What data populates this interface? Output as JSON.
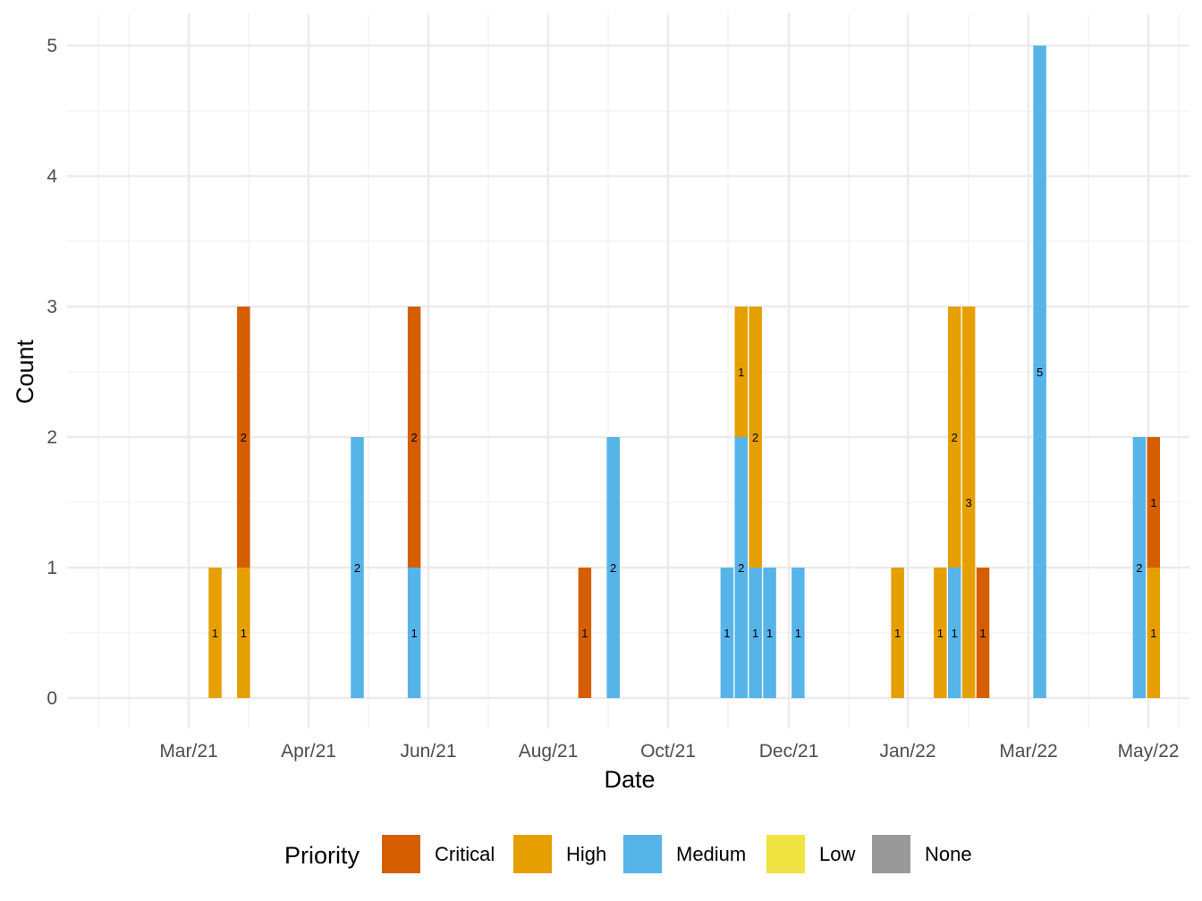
{
  "chart_data": {
    "type": "bar",
    "stacked": true,
    "xlabel": "Date",
    "ylabel": "Count",
    "ylim": [
      0,
      5
    ],
    "y_ticks": [
      0,
      1,
      2,
      3,
      4,
      5
    ],
    "x_ticks": [
      "Mar/21",
      "Apr/21",
      "Jun/21",
      "Aug/21",
      "Oct/21",
      "Dec/21",
      "Jan/22",
      "Mar/22",
      "May/22"
    ],
    "grid": true,
    "legend": {
      "title": "Priority",
      "position": "bottom",
      "entries": [
        {
          "name": "Critical",
          "color": "#D55E00"
        },
        {
          "name": "High",
          "color": "#E69F00"
        },
        {
          "name": "Medium",
          "color": "#56B4E9"
        },
        {
          "name": "Low",
          "color": "#F0E442"
        },
        {
          "name": "None",
          "color": "#999999"
        }
      ]
    },
    "bars": [
      {
        "week": "2021-01-25",
        "segments": [
          {
            "priority": "High",
            "value": 1
          }
        ]
      },
      {
        "week": "2021-02-08",
        "segments": [
          {
            "priority": "High",
            "value": 1
          },
          {
            "priority": "Critical",
            "value": 2
          }
        ]
      },
      {
        "week": "2021-04-05",
        "segments": [
          {
            "priority": "Medium",
            "value": 2
          }
        ]
      },
      {
        "week": "2021-05-03",
        "segments": [
          {
            "priority": "Medium",
            "value": 1
          },
          {
            "priority": "Critical",
            "value": 2
          }
        ]
      },
      {
        "week": "2021-07-26",
        "segments": [
          {
            "priority": "Critical",
            "value": 1
          }
        ]
      },
      {
        "week": "2021-08-09",
        "segments": [
          {
            "priority": "Medium",
            "value": 2
          }
        ]
      },
      {
        "week": "2021-10-04",
        "segments": [
          {
            "priority": "Medium",
            "value": 1
          }
        ]
      },
      {
        "week": "2021-10-11",
        "segments": [
          {
            "priority": "Medium",
            "value": 2
          },
          {
            "priority": "High",
            "value": 1
          }
        ]
      },
      {
        "week": "2021-10-18",
        "segments": [
          {
            "priority": "Medium",
            "value": 1
          },
          {
            "priority": "High",
            "value": 2
          }
        ]
      },
      {
        "week": "2021-10-25",
        "segments": [
          {
            "priority": "Medium",
            "value": 1
          }
        ]
      },
      {
        "week": "2021-11-08",
        "segments": [
          {
            "priority": "Medium",
            "value": 1
          }
        ]
      },
      {
        "week": "2021-12-27",
        "segments": [
          {
            "priority": "High",
            "value": 1
          }
        ]
      },
      {
        "week": "2022-01-17",
        "segments": [
          {
            "priority": "High",
            "value": 1
          }
        ]
      },
      {
        "week": "2022-01-24",
        "segments": [
          {
            "priority": "Medium",
            "value": 1
          },
          {
            "priority": "High",
            "value": 2
          }
        ]
      },
      {
        "week": "2022-01-31",
        "segments": [
          {
            "priority": "High",
            "value": 3
          }
        ]
      },
      {
        "week": "2022-02-07",
        "segments": [
          {
            "priority": "Critical",
            "value": 1
          }
        ]
      },
      {
        "week": "2022-03-07",
        "segments": [
          {
            "priority": "Medium",
            "value": 5
          }
        ]
      },
      {
        "week": "2022-04-25",
        "segments": [
          {
            "priority": "Medium",
            "value": 2
          }
        ]
      },
      {
        "week": "2022-05-02",
        "segments": [
          {
            "priority": "High",
            "value": 1
          },
          {
            "priority": "Critical",
            "value": 1
          }
        ]
      }
    ]
  }
}
